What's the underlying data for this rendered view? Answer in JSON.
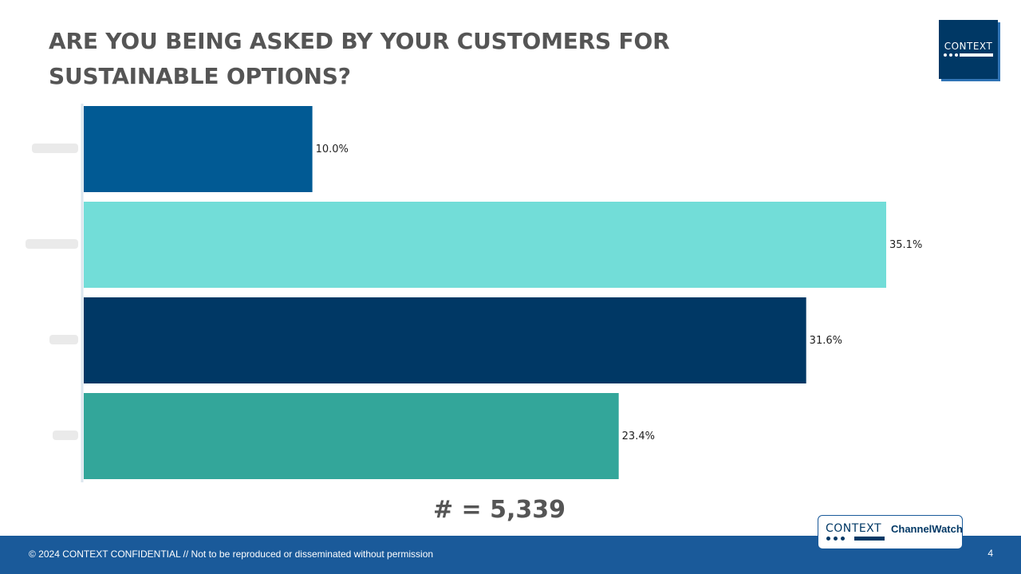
{
  "title": "ARE YOU BEING ASKED BY YOUR CUSTOMERS FOR SUSTAINABLE OPTIONS?",
  "logo": {
    "text": "CONTEXT"
  },
  "chart_data": {
    "type": "bar",
    "orientation": "horizontal",
    "values": [
      10.0,
      35.1,
      31.6,
      23.4
    ],
    "data_labels": [
      "10.0%",
      "35.1%",
      "31.6%",
      "23.4%"
    ],
    "colors": [
      "#015a94",
      "#72ddd8",
      "#003865",
      "#33a69a"
    ],
    "xlim": [
      0,
      35.1
    ],
    "grid": false,
    "legend": "none"
  },
  "sample_size": "# = 5,339",
  "footer": {
    "text": "© 2024 CONTEXT CONFIDENTIAL // Not to be reproduced or disseminated without permission",
    "page_number": "4"
  },
  "channelwatch_logo": {
    "context": "CONTEXT",
    "name": "ChannelWatch"
  }
}
